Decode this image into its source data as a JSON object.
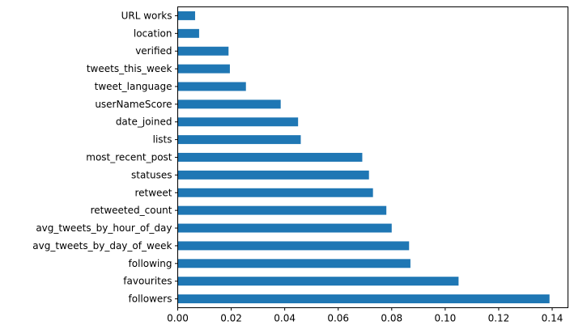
{
  "chart_data": {
    "type": "bar",
    "orientation": "horizontal",
    "categories": [
      "followers",
      "favourites",
      "following",
      "avg_tweets_by_day_of_week",
      "avg_tweets_by_hour_of_day",
      "retweeted_count",
      "retweet",
      "statuses",
      "most_recent_post",
      "lists",
      "date_joined",
      "userNameScore",
      "tweet_language",
      "tweets_this_week",
      "verified",
      "location",
      "URL works"
    ],
    "values": [
      0.139,
      0.105,
      0.087,
      0.0865,
      0.08,
      0.078,
      0.073,
      0.0715,
      0.069,
      0.046,
      0.045,
      0.0385,
      0.0255,
      0.0195,
      0.019,
      0.008,
      0.0065
    ],
    "x_ticks": [
      0.0,
      0.02,
      0.04,
      0.06,
      0.08,
      0.1,
      0.12,
      0.14
    ],
    "x_tick_labels": [
      "0.00",
      "0.02",
      "0.04",
      "0.06",
      "0.08",
      "0.10",
      "0.12",
      "0.14"
    ],
    "xlim": [
      0,
      0.1459
    ],
    "title": "",
    "xlabel": "",
    "ylabel": "",
    "grid": false,
    "bar_color": "#1f77b4"
  }
}
